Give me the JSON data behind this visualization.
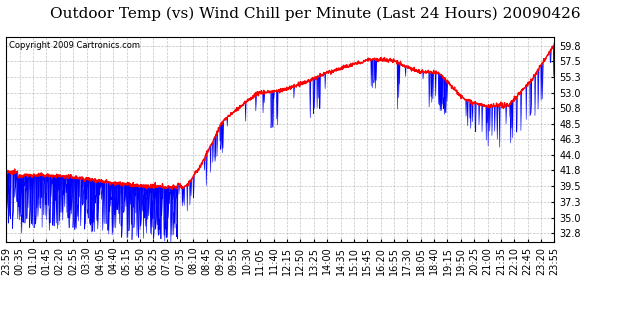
{
  "title": "Outdoor Temp (vs) Wind Chill per Minute (Last 24 Hours) 20090426",
  "copyright": "Copyright 2009 Cartronics.com",
  "yticks": [
    32.8,
    35.0,
    37.3,
    39.5,
    41.8,
    44.0,
    46.3,
    48.5,
    50.8,
    53.0,
    55.3,
    57.5,
    59.8
  ],
  "ylim": [
    31.5,
    61.0
  ],
  "xtick_labels": [
    "23:59",
    "00:35",
    "01:10",
    "01:45",
    "02:20",
    "02:55",
    "03:30",
    "04:05",
    "04:40",
    "05:15",
    "05:50",
    "06:25",
    "07:00",
    "07:35",
    "08:10",
    "08:45",
    "09:20",
    "09:55",
    "10:30",
    "11:05",
    "11:40",
    "12:15",
    "12:50",
    "13:25",
    "14:00",
    "14:35",
    "15:10",
    "15:45",
    "16:20",
    "16:55",
    "17:30",
    "18:05",
    "18:40",
    "19:15",
    "19:50",
    "20:25",
    "21:00",
    "21:35",
    "22:10",
    "22:45",
    "23:20",
    "23:55"
  ],
  "background_color": "#ffffff",
  "plot_background": "#ffffff",
  "grid_color": "#aaaaaa",
  "title_fontsize": 11,
  "copyright_fontsize": 6,
  "tick_fontsize": 7,
  "outer_temp_color": "#ff0000",
  "wind_chill_color": "#0000ff",
  "n_points": 1440,
  "seed": 12345
}
